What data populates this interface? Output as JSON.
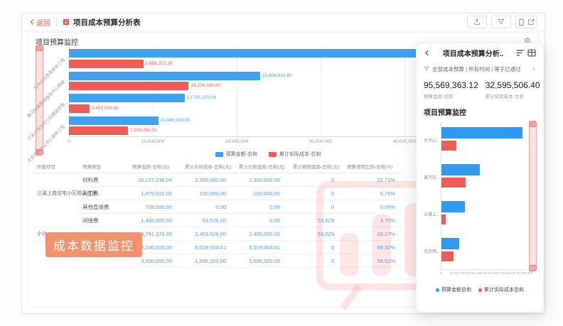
{
  "app": {
    "back_label": "返回",
    "title": "项目成本预算分析表",
    "section_title": "项目预算监控"
  },
  "colors": {
    "accent_red": "#E8544E",
    "bar_blue": "#3FA1F0",
    "bar_red": "#F05B55",
    "value_blue": "#4C9FE8",
    "badge_orange": "#F2916C",
    "watermark_pink": "#F0544F"
  },
  "badge": {
    "label": "成本数据监控"
  },
  "chart_data": [
    {
      "type": "bar",
      "orientation": "horizontal",
      "title": "项目预算监控",
      "categories": [
        "九华山庄改造装修工程",
        "黄河东路管理服务中心精装..",
        "兰溪上苑住宅小区精装修第..",
        "北京西路办公中心装修工程"
      ],
      "series": [
        {
          "name": "预算金额-总和",
          "color": "#3FA1F0",
          "values": [
            48331061.32,
            22806631.8,
            13791370.0,
            10640300.0
          ],
          "labels": [
            "",
            "22,806,631.80",
            "13,791,370.00",
            "10,640,300.00"
          ]
        },
        {
          "name": "累计实际成本-总和",
          "color": "#F05B55",
          "values": [
            8856372.39,
            14276343.0,
            2453529.0,
            7009262.01
          ],
          "labels": [
            "8,856,372.39",
            "14,276,343.00",
            "2,453,529.00",
            "7,009,262.01"
          ]
        }
      ],
      "xlim": [
        0,
        40000000
      ],
      "x_ticks": [
        "0",
        "10,000,000",
        "20,000,000",
        "30,000,000",
        "40,000,000"
      ],
      "grid": true,
      "legend_position": "bottom"
    },
    {
      "type": "bar",
      "orientation": "horizontal",
      "title": "项目预算监控",
      "categories": [
        "九华山..",
        "黄河东..",
        "兰溪上..",
        "北京西.."
      ],
      "series": [
        {
          "name": "预算金额总和",
          "color": "#2E9BF0",
          "values": [
            48331061.32,
            22806631.8,
            13791370.0,
            10640300.0
          ]
        },
        {
          "name": "累计实际成本总和",
          "color": "#F05B55",
          "values": [
            8856372.39,
            14276343.0,
            2453529.0,
            7009262.01
          ]
        }
      ],
      "xlim": [
        0,
        50000000
      ],
      "x_ticks": [
        "0",
        "10,000,000",
        "20,000,000",
        "30,000,000",
        "40,000,000",
        "50,000,000"
      ],
      "grid": false,
      "legend_position": "bottom"
    }
  ],
  "table": {
    "columns": [
      "所属项目",
      "预算类型",
      "预算金额-总和(元)",
      "累计实际成本-总和(元)",
      "累计付款金额-总和(元)",
      "累计报销金额-总和(元)",
      "预算使用比例-总和(%)"
    ],
    "rows": [
      {
        "project": "",
        "type": "材料费",
        "budget": "10,127,238.00",
        "actual": "2,300,000.00",
        "paid": "2,300,000.00",
        "reimb": "0",
        "ratio": "22.71%"
      },
      {
        "project": "兰溪上苑住宅小区精装修第...",
        "type": "人工费",
        "budget": "1,479,032.00",
        "actual": "100,000.00",
        "paid": "100,000.00",
        "reimb": "0",
        "ratio": "6.76%"
      },
      {
        "project": "",
        "type": "其他直接费",
        "budget": "739,500.00",
        "actual": "0.00",
        "paid": "0.00",
        "reimb": "0",
        "ratio": "0.00%"
      },
      {
        "project": "",
        "type": "间接费",
        "budget": "1,445,600.00",
        "actual": "53,529.00",
        "paid": "0.00",
        "reimb": "53,529",
        "ratio": "3.70%"
      },
      {
        "project": "小计",
        "type": "",
        "budget": "13,791,370.00",
        "actual": "2,453,529.00",
        "paid": "2,400,000.00",
        "reimb": "53,529",
        "ratio": "33.17%"
      },
      {
        "project": "",
        "type": "材料费",
        "budget": "7,240,000.00",
        "actual": "5,019,004.01",
        "paid": "5,019,004.01",
        "reimb": "0",
        "ratio": "69.32%"
      },
      {
        "project": "",
        "type": "",
        "budget": "3,000,000.00",
        "actual": "1,695,320.00",
        "paid": "1,695,320.00",
        "reimb": "0",
        "ratio": "56.51%"
      }
    ]
  },
  "panel": {
    "title": "项目成本预算分析..",
    "filter_text": "全部成本预算 | 所有时间 | 等于已通过",
    "metrics": [
      {
        "value": "95,569,363.12",
        "label": "预算金额·总和"
      },
      {
        "value": "32,595,506.40",
        "label": "累计实际成本·总和"
      }
    ],
    "section_title": "项目预算监控"
  }
}
